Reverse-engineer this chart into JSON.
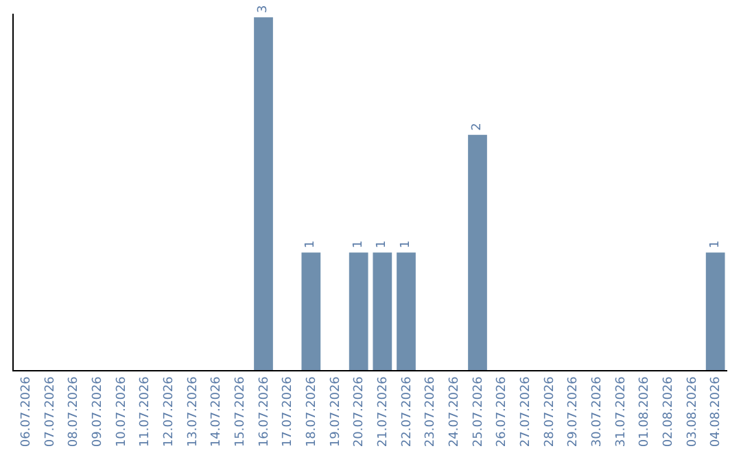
{
  "chart_data": {
    "type": "bar",
    "categories": [
      "06.07.2026",
      "07.07.2026",
      "08.07.2026",
      "09.07.2026",
      "10.07.2026",
      "11.07.2026",
      "12.07.2026",
      "13.07.2026",
      "14.07.2026",
      "15.07.2026",
      "16.07.2026",
      "17.07.2026",
      "18.07.2026",
      "19.07.2026",
      "20.07.2026",
      "21.07.2026",
      "22.07.2026",
      "23.07.2026",
      "24.07.2026",
      "25.07.2026",
      "26.07.2026",
      "27.07.2026",
      "28.07.2026",
      "29.07.2026",
      "30.07.2026",
      "31.07.2026",
      "01.08.2026",
      "02.08.2026",
      "03.08.2026",
      "04.08.2026"
    ],
    "values": [
      0,
      0,
      0,
      0,
      0,
      0,
      0,
      0,
      0,
      0,
      3,
      0,
      1,
      0,
      1,
      1,
      1,
      0,
      0,
      2,
      0,
      0,
      0,
      0,
      0,
      0,
      0,
      0,
      0,
      1
    ],
    "value_labels": [
      null,
      null,
      null,
      null,
      null,
      null,
      null,
      null,
      null,
      null,
      "3",
      null,
      "1",
      null,
      "1",
      "1",
      "1",
      null,
      null,
      "2",
      null,
      null,
      null,
      null,
      null,
      null,
      null,
      null,
      null,
      "1"
    ],
    "color": "#6f8fae",
    "ylim": [
      0,
      3.03
    ],
    "tick_labels": "x",
    "legend": false
  }
}
